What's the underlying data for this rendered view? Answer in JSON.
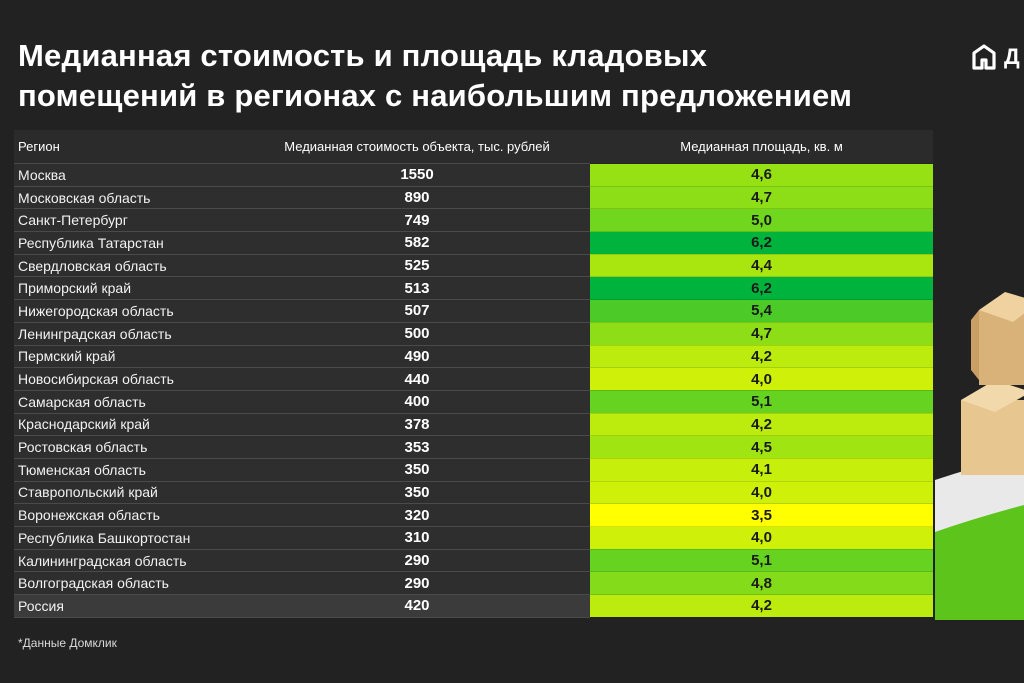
{
  "title": {
    "line1": "Медианная стоимость и площадь кладовых",
    "line2": "помещений в регионах с наибольшим предложением"
  },
  "logo": {
    "text": "Д"
  },
  "footnote": "*Данные Домклик",
  "colors": {
    "background": "#222222",
    "scale_low": "#ffff00",
    "scale_high": "#00b33c"
  },
  "chart_data": {
    "type": "table",
    "columns": [
      "Регион",
      "Медианная стоимость объекта, тыс. рублей",
      "Медианная площадь, кв. м"
    ],
    "rows": [
      {
        "region": "Москва",
        "cost": "1550",
        "area": "4,6",
        "area_value": 4.6
      },
      {
        "region": "Московская область",
        "cost": "890",
        "area": "4,7",
        "area_value": 4.7
      },
      {
        "region": "Санкт-Петербург",
        "cost": "749",
        "area": "5,0",
        "area_value": 5.0
      },
      {
        "region": "Республика Татарстан",
        "cost": "582",
        "area": "6,2",
        "area_value": 6.2
      },
      {
        "region": "Свердловская область",
        "cost": "525",
        "area": "4,4",
        "area_value": 4.4
      },
      {
        "region": "Приморский край",
        "cost": "513",
        "area": "6,2",
        "area_value": 6.2
      },
      {
        "region": "Нижегородская область",
        "cost": "507",
        "area": "5,4",
        "area_value": 5.4
      },
      {
        "region": "Ленинградская область",
        "cost": "500",
        "area": "4,7",
        "area_value": 4.7
      },
      {
        "region": "Пермский край",
        "cost": "490",
        "area": "4,2",
        "area_value": 4.2
      },
      {
        "region": "Новосибирская область",
        "cost": "440",
        "area": "4,0",
        "area_value": 4.0
      },
      {
        "region": "Самарская область",
        "cost": "400",
        "area": "5,1",
        "area_value": 5.1
      },
      {
        "region": "Краснодарский край",
        "cost": "378",
        "area": "4,2",
        "area_value": 4.2
      },
      {
        "region": "Ростовская область",
        "cost": "353",
        "area": "4,5",
        "area_value": 4.5
      },
      {
        "region": "Тюменская область",
        "cost": "350",
        "area": "4,1",
        "area_value": 4.1
      },
      {
        "region": "Ставропольский край",
        "cost": "350",
        "area": "4,0",
        "area_value": 4.0
      },
      {
        "region": "Воронежская область",
        "cost": "320",
        "area": "3,5",
        "area_value": 3.5
      },
      {
        "region": "Республика Башкортостан",
        "cost": "310",
        "area": "4,0",
        "area_value": 4.0
      },
      {
        "region": "Калининградская область",
        "cost": "290",
        "area": "5,1",
        "area_value": 5.1
      },
      {
        "region": "Волгоградская область",
        "cost": "290",
        "area": "4,8",
        "area_value": 4.8
      },
      {
        "region": "Россия",
        "cost": "420",
        "area": "4,2",
        "area_value": 4.2
      }
    ]
  }
}
